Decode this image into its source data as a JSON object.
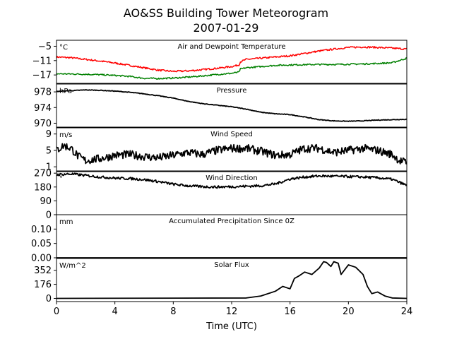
{
  "title": "AO&SS Building Tower Meteorogram",
  "subtitle": "2007-01-29",
  "xlabel": "Time (UTC)",
  "xlim": [
    0,
    24
  ],
  "xticks": [
    "0",
    "4",
    "8",
    "12",
    "16",
    "20",
    "24"
  ],
  "chart_data": [
    {
      "type": "line",
      "title": "Air and Dewpoint Temperature",
      "unit": "°C",
      "ylim": [
        -20.5,
        -2.5
      ],
      "yticks": [
        {
          "value": -5,
          "label": "−5"
        },
        {
          "value": -11,
          "label": "−11"
        },
        {
          "value": -17,
          "label": "−17"
        }
      ],
      "series": [
        {
          "color": "#ff0000",
          "noise": 0.35,
          "x": [
            0,
            1,
            2,
            3,
            4,
            5,
            6,
            7,
            8,
            9,
            10,
            11,
            12,
            12.5,
            12.6,
            13,
            14,
            15,
            16,
            17,
            18,
            19,
            20,
            21,
            22,
            23,
            24
          ],
          "y": [
            -9.5,
            -9.8,
            -10.5,
            -11.2,
            -12,
            -13,
            -14,
            -15,
            -15.5,
            -15.3,
            -14.8,
            -14.2,
            -13.5,
            -12.8,
            -11.5,
            -10.5,
            -10,
            -9.5,
            -9,
            -8,
            -7,
            -6.2,
            -5.5,
            -5.3,
            -5.5,
            -5.8,
            -6.2
          ]
        },
        {
          "color": "#008000",
          "noise": 0.3,
          "x": [
            0,
            1,
            2,
            3,
            4,
            5,
            6,
            7,
            8,
            9,
            10,
            11,
            12,
            12.5,
            12.6,
            13,
            14,
            15,
            16,
            17,
            18,
            19,
            20,
            21,
            22,
            23,
            24
          ],
          "y": [
            -16.5,
            -16.6,
            -16.7,
            -16.9,
            -17.2,
            -17.6,
            -18.4,
            -18.5,
            -18.3,
            -17.9,
            -17.4,
            -16.8,
            -16.3,
            -15.8,
            -14.5,
            -14,
            -13.5,
            -13,
            -12.8,
            -12.7,
            -12.6,
            -12.6,
            -12.5,
            -12.4,
            -12.2,
            -11.9,
            -10
          ]
        }
      ]
    },
    {
      "type": "line",
      "title": "Pressure",
      "unit": "hPa",
      "ylim": [
        969,
        980
      ],
      "yticks": [
        {
          "value": 978,
          "label": "978"
        },
        {
          "value": 974,
          "label": "974"
        },
        {
          "value": 970,
          "label": "970"
        }
      ],
      "series": [
        {
          "color": "#000000",
          "noise": 0.08,
          "x": [
            0,
            1,
            2,
            3,
            4,
            5,
            6,
            7,
            8,
            9,
            10,
            11,
            12,
            13,
            14,
            15,
            16,
            17,
            18,
            19,
            20,
            21,
            22,
            23,
            24
          ],
          "y": [
            978.1,
            978.3,
            978.5,
            978.4,
            978.2,
            977.9,
            977.5,
            977,
            976.4,
            975.6,
            975,
            974.6,
            974.2,
            973.6,
            972.8,
            972.4,
            972.2,
            971.6,
            970.9,
            970.6,
            970.5,
            970.6,
            970.8,
            970.9,
            971
          ]
        }
      ]
    },
    {
      "type": "line",
      "title": "Wind Speed",
      "unit": "m/s",
      "ylim": [
        0,
        10.5
      ],
      "yticks": [
        {
          "value": 9,
          "label": "9"
        },
        {
          "value": 5,
          "label": "5"
        },
        {
          "value": 1,
          "label": "1"
        }
      ],
      "series": [
        {
          "color": "#000000",
          "noise": 1.0,
          "x": [
            0,
            0.5,
            1,
            1.5,
            2,
            3,
            4,
            5,
            6,
            7,
            8,
            9,
            10,
            11,
            12,
            13,
            14,
            15,
            16,
            17,
            18,
            19,
            20,
            21,
            22,
            23,
            23.5,
            24
          ],
          "y": [
            5,
            6.2,
            5.5,
            3.5,
            2.5,
            3,
            3.8,
            4,
            3.5,
            3.2,
            3.8,
            4.5,
            4,
            5,
            5.5,
            5.5,
            4.8,
            3.8,
            4,
            5.5,
            5.5,
            4.5,
            5,
            5.5,
            5,
            4,
            2.5,
            2
          ]
        }
      ]
    },
    {
      "type": "line",
      "title": "Wind Direction",
      "unit": "°",
      "ylim": [
        0,
        280
      ],
      "yticks": [
        {
          "value": 270,
          "label": "270"
        },
        {
          "value": 180,
          "label": "180"
        },
        {
          "value": 90,
          "label": "90"
        },
        {
          "value": 0,
          "label": "0"
        }
      ],
      "series": [
        {
          "color": "#000000",
          "noise": 8,
          "x": [
            0,
            1,
            2,
            3,
            4,
            5,
            6,
            7,
            8,
            9,
            10,
            11,
            12,
            13,
            14,
            15,
            16,
            17,
            18,
            19,
            20,
            21,
            22,
            23,
            24
          ],
          "y": [
            260,
            265,
            255,
            245,
            238,
            235,
            228,
            215,
            198,
            188,
            182,
            180,
            182,
            185,
            188,
            200,
            232,
            245,
            252,
            250,
            248,
            245,
            240,
            230,
            190
          ]
        }
      ]
    },
    {
      "type": "line",
      "title": "Accumulated Precipitation Since 0Z",
      "unit": "mm",
      "ylim": [
        0,
        0.15
      ],
      "yticks": [
        {
          "value": 0.1,
          "label": "0.10"
        },
        {
          "value": 0.05,
          "label": "0.05"
        },
        {
          "value": 0,
          "label": "0.00"
        }
      ],
      "series": [
        {
          "color": "#000000",
          "noise": 0,
          "x": [
            0,
            24
          ],
          "y": [
            0,
            0
          ]
        }
      ]
    },
    {
      "type": "line",
      "title": "Solar Flux",
      "unit": "W/m^2",
      "ylim": [
        -40,
        500
      ],
      "yticks": [
        {
          "value": 352,
          "label": "352"
        },
        {
          "value": 176,
          "label": "176"
        },
        {
          "value": 0,
          "label": "0"
        }
      ],
      "series": [
        {
          "color": "#000000",
          "noise": 0,
          "x": [
            0,
            13,
            14,
            15,
            15.5,
            16,
            16.3,
            16.6,
            17,
            17.5,
            18,
            18.3,
            18.5,
            18.8,
            19,
            19.3,
            19.5,
            20,
            20.5,
            21,
            21.3,
            21.6,
            22,
            22.5,
            23,
            24
          ],
          "y": [
            0,
            5,
            30,
            90,
            150,
            120,
            250,
            280,
            330,
            300,
            380,
            460,
            450,
            400,
            460,
            440,
            300,
            420,
            390,
            300,
            150,
            60,
            80,
            30,
            5,
            0
          ]
        }
      ]
    }
  ]
}
